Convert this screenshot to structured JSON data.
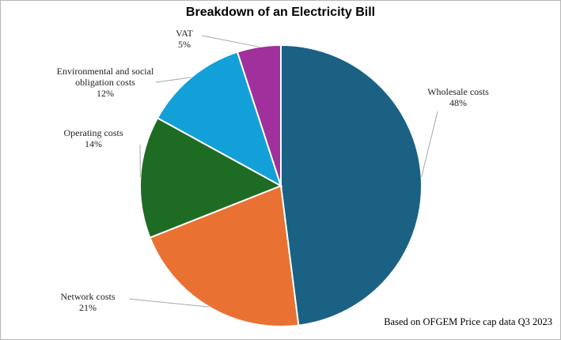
{
  "chart_data": {
    "type": "pie",
    "title": "Breakdown of an Electricity Bill",
    "categories": [
      "Wholesale costs",
      "Network costs",
      "Operating costs",
      "Environmental and social obligation costs",
      "VAT"
    ],
    "values": [
      48,
      21,
      14,
      12,
      5
    ],
    "value_labels": [
      "48%",
      "21%",
      "14%",
      "12%",
      "5%"
    ],
    "colors": [
      "#1a6184",
      "#e97132",
      "#1e6b24",
      "#13a0d8",
      "#a0309c"
    ],
    "note": "Based on OFGEM Price cap data Q3 2023"
  }
}
